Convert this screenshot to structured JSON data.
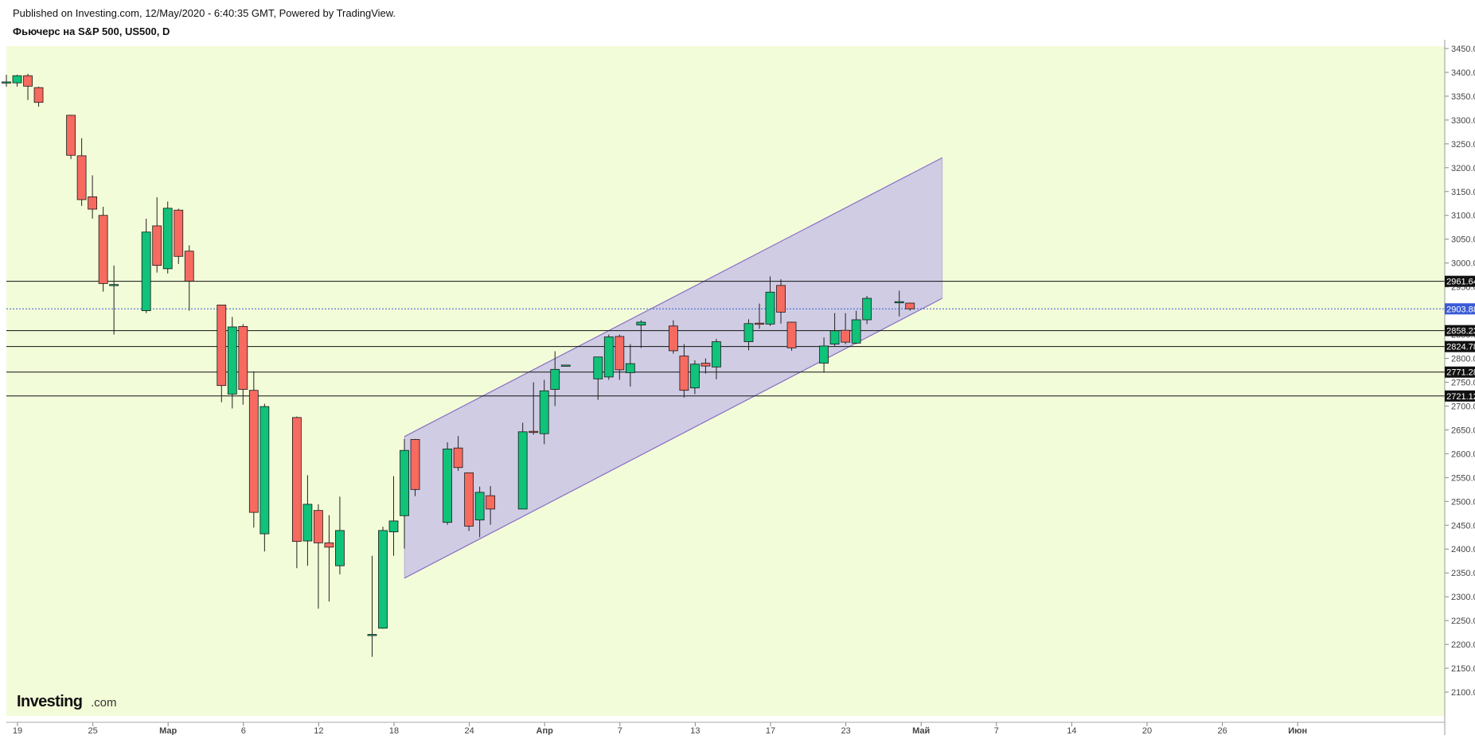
{
  "header": {
    "published": "Published on Investing.com, 12/May/2020 - 6:40:35 GMT, Powered by TradingView.",
    "instrument": "Фьючерс на S&P 500, US500, D"
  },
  "logo": {
    "main": "Investing",
    "suffix": ".com"
  },
  "colors": {
    "plot_bg": "#f3fcd8",
    "up": "#10c27a",
    "down": "#f66a60",
    "wick": "#222222",
    "channel_fill": "#c8c3e6",
    "channel_line": "#8a6fc4",
    "current_line": "#3a5bd6",
    "level_line": "#111111"
  },
  "chart_data": {
    "type": "candlestick",
    "ylim": [
      2050,
      3455
    ],
    "y_ticks": [
      "2100.00",
      "2150.00",
      "2200.00",
      "2250.00",
      "2300.00",
      "2350.00",
      "2400.00",
      "2450.00",
      "2500.00",
      "2550.00",
      "2600.00",
      "2650.00",
      "2700.00",
      "2750.00",
      "2800.00",
      "2850.00",
      "2900.00",
      "2950.00",
      "3000.00",
      "3050.00",
      "3100.00",
      "3150.00",
      "3200.00",
      "3250.00",
      "3300.00",
      "3350.00",
      "3400.00",
      "3450.00"
    ],
    "x_labels": [
      "19",
      "25",
      "Мар",
      "6",
      "12",
      "18",
      "24",
      "Апр",
      "7",
      "13",
      "17",
      "23",
      "Май",
      "7",
      "14",
      "20",
      "26",
      "Июн"
    ],
    "candles": [
      {
        "date": "2020-02-18",
        "o": 3380,
        "h": 3395,
        "l": 3370,
        "c": 3380
      },
      {
        "date": "2020-02-19",
        "o": 3378,
        "h": 3395,
        "l": 3370,
        "c": 3393
      },
      {
        "date": "2020-02-20",
        "o": 3393,
        "h": 3397,
        "l": 3342,
        "c": 3371
      },
      {
        "date": "2020-02-21",
        "o": 3368,
        "h": 3370,
        "l": 3328,
        "c": 3337
      },
      {
        "date": "2020-02-24",
        "o": 3310,
        "h": 3311,
        "l": 3218,
        "c": 3226
      },
      {
        "date": "2020-02-25",
        "o": 3225,
        "h": 3262,
        "l": 3120,
        "c": 3133
      },
      {
        "date": "2020-02-26",
        "o": 3139,
        "h": 3184,
        "l": 3093,
        "c": 3113
      },
      {
        "date": "2020-02-27",
        "o": 3100,
        "h": 3118,
        "l": 2940,
        "c": 2957
      },
      {
        "date": "2020-02-28",
        "o": 2955,
        "h": 2995,
        "l": 2850,
        "c": 2955
      },
      {
        "date": "2020-03-02",
        "o": 2900,
        "h": 3093,
        "l": 2895,
        "c": 3065
      },
      {
        "date": "2020-03-03",
        "o": 3078,
        "h": 3138,
        "l": 2980,
        "c": 2995
      },
      {
        "date": "2020-03-04",
        "o": 2988,
        "h": 3129,
        "l": 2978,
        "c": 3115
      },
      {
        "date": "2020-03-05",
        "o": 3111,
        "h": 3114,
        "l": 2998,
        "c": 3014
      },
      {
        "date": "2020-03-06",
        "o": 3025,
        "h": 3037,
        "l": 2900,
        "c": 2962
      },
      {
        "date": "2020-03-09",
        "o": 2912,
        "h": 2912,
        "l": 2708,
        "c": 2743
      },
      {
        "date": "2020-03-10",
        "o": 2725,
        "h": 2887,
        "l": 2695,
        "c": 2866
      },
      {
        "date": "2020-03-11",
        "o": 2867,
        "h": 2872,
        "l": 2703,
        "c": 2735
      },
      {
        "date": "2020-03-12",
        "o": 2733,
        "h": 2773,
        "l": 2445,
        "c": 2477
      },
      {
        "date": "2020-03-13",
        "o": 2432,
        "h": 2705,
        "l": 2395,
        "c": 2699
      },
      {
        "date": "2020-03-16",
        "o": 2676,
        "h": 2678,
        "l": 2360,
        "c": 2416
      },
      {
        "date": "2020-03-17",
        "o": 2417,
        "h": 2555,
        "l": 2365,
        "c": 2494
      },
      {
        "date": "2020-03-18",
        "o": 2481,
        "h": 2494,
        "l": 2275,
        "c": 2413
      },
      {
        "date": "2020-03-19",
        "o": 2413,
        "h": 2471,
        "l": 2290,
        "c": 2404
      },
      {
        "date": "2020-03-20",
        "o": 2365,
        "h": 2510,
        "l": 2347,
        "c": 2439
      },
      {
        "date": "2020-03-23",
        "o": 2221,
        "h": 2386,
        "l": 2174,
        "c": 2221
      },
      {
        "date": "2020-03-24",
        "o": 2234,
        "h": 2447,
        "l": 2233,
        "c": 2439
      },
      {
        "date": "2020-03-25",
        "o": 2436,
        "h": 2553,
        "l": 2386,
        "c": 2459
      },
      {
        "date": "2020-03-26",
        "o": 2470,
        "h": 2631,
        "l": 2401,
        "c": 2607
      },
      {
        "date": "2020-03-27",
        "o": 2630,
        "h": 2631,
        "l": 2511,
        "c": 2525
      },
      {
        "date": "2020-03-30",
        "o": 2456,
        "h": 2624,
        "l": 2451,
        "c": 2610
      },
      {
        "date": "2020-03-31",
        "o": 2612,
        "h": 2637,
        "l": 2564,
        "c": 2571
      },
      {
        "date": "2020-04-01",
        "o": 2560,
        "h": 2560,
        "l": 2438,
        "c": 2448
      },
      {
        "date": "2020-04-02",
        "o": 2461,
        "h": 2531,
        "l": 2425,
        "c": 2519
      },
      {
        "date": "2020-04-03",
        "o": 2512,
        "h": 2532,
        "l": 2451,
        "c": 2484
      },
      {
        "date": "2020-04-06",
        "o": 2484,
        "h": 2665,
        "l": 2484,
        "c": 2646
      },
      {
        "date": "2020-04-07",
        "o": 2647,
        "h": 2750,
        "l": 2640,
        "c": 2645
      },
      {
        "date": "2020-04-08",
        "o": 2642,
        "h": 2755,
        "l": 2620,
        "c": 2732
      },
      {
        "date": "2020-04-09",
        "o": 2735,
        "h": 2815,
        "l": 2700,
        "c": 2777
      },
      {
        "date": "2020-04-10",
        "o": 2786,
        "h": 2786,
        "l": 2786,
        "c": 2786
      },
      {
        "date": "2020-04-13",
        "o": 2757,
        "h": 2795,
        "l": 2713,
        "c": 2803
      },
      {
        "date": "2020-04-14",
        "o": 2761,
        "h": 2850,
        "l": 2755,
        "c": 2845
      },
      {
        "date": "2020-04-15",
        "o": 2846,
        "h": 2850,
        "l": 2755,
        "c": 2776
      },
      {
        "date": "2020-04-16",
        "o": 2770,
        "h": 2830,
        "l": 2741,
        "c": 2789
      },
      {
        "date": "2020-04-17",
        "o": 2870,
        "h": 2880,
        "l": 2822,
        "c": 2876
      },
      {
        "date": "2020-04-20",
        "o": 2868,
        "h": 2880,
        "l": 2810,
        "c": 2816
      },
      {
        "date": "2020-04-21",
        "o": 2805,
        "h": 2830,
        "l": 2718,
        "c": 2733
      },
      {
        "date": "2020-04-22",
        "o": 2738,
        "h": 2796,
        "l": 2725,
        "c": 2788
      },
      {
        "date": "2020-04-23",
        "o": 2790,
        "h": 2800,
        "l": 2768,
        "c": 2784
      },
      {
        "date": "2020-04-24",
        "o": 2782,
        "h": 2841,
        "l": 2756,
        "c": 2835
      },
      {
        "date": "2020-04-27",
        "o": 2835,
        "h": 2882,
        "l": 2817,
        "c": 2873
      },
      {
        "date": "2020-04-28",
        "o": 2874,
        "h": 2915,
        "l": 2862,
        "c": 2872
      },
      {
        "date": "2020-04-29",
        "o": 2872,
        "h": 2972,
        "l": 2868,
        "c": 2939
      },
      {
        "date": "2020-04-30",
        "o": 2953,
        "h": 2966,
        "l": 2873,
        "c": 2897
      },
      {
        "date": "2020-05-01",
        "o": 2876,
        "h": 2877,
        "l": 2816,
        "c": 2822
      },
      {
        "date": "2020-05-04",
        "o": 2790,
        "h": 2844,
        "l": 2770,
        "c": 2826
      },
      {
        "date": "2020-05-05",
        "o": 2830,
        "h": 2895,
        "l": 2826,
        "c": 2858
      },
      {
        "date": "2020-05-06",
        "o": 2859,
        "h": 2895,
        "l": 2830,
        "c": 2834
      },
      {
        "date": "2020-05-07",
        "o": 2832,
        "h": 2900,
        "l": 2830,
        "c": 2881
      },
      {
        "date": "2020-05-08",
        "o": 2881,
        "h": 2931,
        "l": 2872,
        "c": 2926
      },
      {
        "date": "2020-05-11",
        "o": 2917,
        "h": 2942,
        "l": 2888,
        "c": 2919
      },
      {
        "date": "2020-05-12",
        "o": 2916,
        "h": 2917,
        "l": 2900,
        "c": 2904
      }
    ],
    "horizontal_levels": [
      {
        "value": 2961.64,
        "label": "2961.64"
      },
      {
        "value": 2858.23,
        "label": "2858.23"
      },
      {
        "value": 2824.78,
        "label": "2824.78"
      },
      {
        "value": 2771.28,
        "label": "2771.28"
      },
      {
        "value": 2721.12,
        "label": "2721.12"
      }
    ],
    "current_price": {
      "value": 2903.88,
      "label": "2903.88"
    },
    "channel": {
      "start_date": "2020-03-26",
      "end_date": "2020-05-15",
      "upper": [
        2636,
        3221
      ],
      "lower": [
        2339,
        2926
      ]
    }
  }
}
